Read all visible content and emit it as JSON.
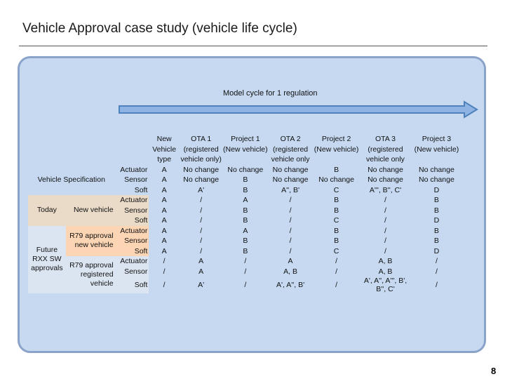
{
  "slide": {
    "title": "Vehicle Approval case study (vehicle life cycle)",
    "cycle_label": "Model cycle for 1 regulation",
    "page_number": "8"
  },
  "colors": {
    "panel": "#c6d9f1",
    "arrow": "#4f81bd",
    "today": "#eadbc8",
    "r79": "#fcd5b4",
    "future": "#dbe5f1"
  },
  "headers": [
    {
      "l1": "New",
      "l2": "Vehicle",
      "l3": "type"
    },
    {
      "l1": "OTA 1",
      "l2": "(registered",
      "l3": "vehicle only)"
    },
    {
      "l1": "Project 1",
      "l2": "(New vehicle)",
      "l3": ""
    },
    {
      "l1": "OTA 2",
      "l2": "(registered",
      "l3": "vehicle only"
    },
    {
      "l1": "Project 2",
      "l2": "(New vehicle)",
      "l3": ""
    },
    {
      "l1": "OTA 3",
      "l2": "(registered",
      "l3": "vehicle only"
    },
    {
      "l1": "Project 3",
      "l2": "(New vehicle)",
      "l3": ""
    }
  ],
  "groups": {
    "vehicle_spec": "Vehicle Specification",
    "today": "Today",
    "future": "Future RXX SW approvals",
    "new_vehicle": "New vehicle",
    "r79_new_vehicle": "R79 approval new vehicle",
    "r79_registered": "R79 approval registered vehicle"
  },
  "rows": [
    {
      "comp": "Actuator",
      "cells": [
        "A",
        "No change",
        "No change",
        "No change",
        "B",
        "No change",
        "No change"
      ]
    },
    {
      "comp": "Sensor",
      "cells": [
        "A",
        "No change",
        "B",
        "No change",
        "No change",
        "No change",
        "No change"
      ]
    },
    {
      "comp": "Soft",
      "cells": [
        "A",
        "A'",
        "B",
        "A'', B'",
        "C",
        "A''', B'', C'",
        "D"
      ]
    },
    {
      "comp": "Actuator",
      "cells": [
        "A",
        "/",
        "A",
        "/",
        "B",
        "/",
        "B"
      ]
    },
    {
      "comp": "Sensor",
      "cells": [
        "A",
        "/",
        "B",
        "/",
        "B",
        "/",
        "B"
      ]
    },
    {
      "comp": "Soft",
      "cells": [
        "A",
        "/",
        "B",
        "/",
        "C",
        "/",
        "D"
      ]
    },
    {
      "comp": "Actuator",
      "cells": [
        "A",
        "/",
        "A",
        "/",
        "B",
        "/",
        "B"
      ]
    },
    {
      "comp": "Sensor",
      "cells": [
        "A",
        "/",
        "B",
        "/",
        "B",
        "/",
        "B"
      ]
    },
    {
      "comp": "Soft",
      "cells": [
        "A",
        "/",
        "B",
        "/",
        "C",
        "/",
        "D"
      ]
    },
    {
      "comp": "Actuator",
      "cells": [
        "/",
        "A",
        "/",
        "A",
        "/",
        "A, B",
        "/"
      ]
    },
    {
      "comp": "Sensor",
      "cells": [
        "/",
        "A",
        "/",
        "A, B",
        "/",
        "A, B",
        "/"
      ]
    },
    {
      "comp": "Soft",
      "cells": [
        "/",
        "A'",
        "/",
        "A', A'', B'",
        "/",
        "A', A'', A''', B', B'', C'",
        "/"
      ]
    }
  ]
}
